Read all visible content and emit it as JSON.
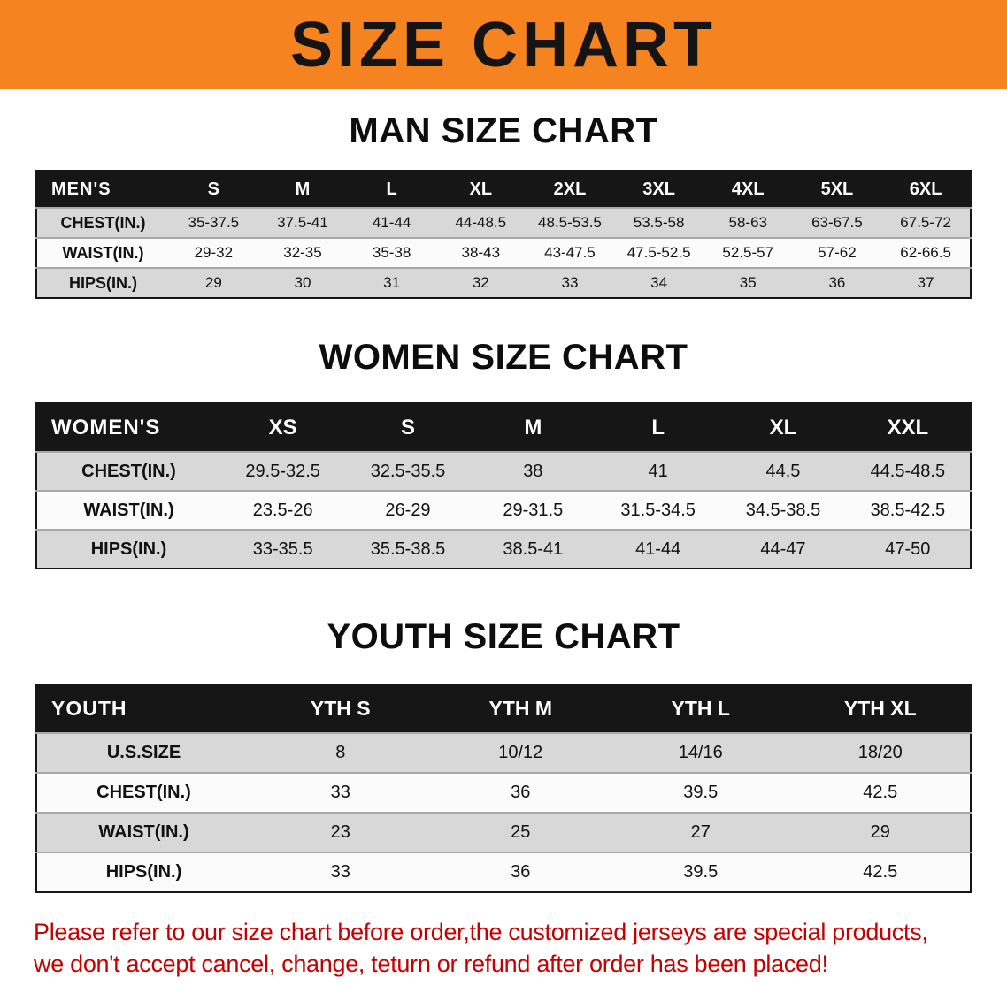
{
  "banner": {
    "title": "SIZE CHART",
    "bg_color": "#F5831F",
    "text_color": "#141414"
  },
  "sections": [
    {
      "heading": "MAN SIZE CHART",
      "header_label": "MEN'S",
      "columns": [
        "S",
        "M",
        "L",
        "XL",
        "2XL",
        "3XL",
        "4XL",
        "5XL",
        "6XL"
      ],
      "rows": [
        {
          "label": "CHEST(IN.)",
          "values": [
            "35-37.5",
            "37.5-41",
            "41-44",
            "44-48.5",
            "48.5-53.5",
            "53.5-58",
            "58-63",
            "63-67.5",
            "67.5-72"
          ]
        },
        {
          "label": "WAIST(IN.)",
          "values": [
            "29-32",
            "32-35",
            "35-38",
            "38-43",
            "43-47.5",
            "47.5-52.5",
            "52.5-57",
            "57-62",
            "62-66.5"
          ]
        },
        {
          "label": "HIPS(IN.)",
          "values": [
            "29",
            "30",
            "31",
            "32",
            "33",
            "34",
            "35",
            "36",
            "37"
          ]
        }
      ]
    },
    {
      "heading": "WOMEN SIZE CHART",
      "header_label": "WOMEN'S",
      "columns": [
        "XS",
        "S",
        "M",
        "L",
        "XL",
        "XXL"
      ],
      "rows": [
        {
          "label": "CHEST(IN.)",
          "values": [
            "29.5-32.5",
            "32.5-35.5",
            "38",
            "41",
            "44.5",
            "44.5-48.5"
          ]
        },
        {
          "label": "WAIST(IN.)",
          "values": [
            "23.5-26",
            "26-29",
            "29-31.5",
            "31.5-34.5",
            "34.5-38.5",
            "38.5-42.5"
          ]
        },
        {
          "label": "HIPS(IN.)",
          "values": [
            "33-35.5",
            "35.5-38.5",
            "38.5-41",
            "41-44",
            "44-47",
            "47-50"
          ]
        }
      ]
    },
    {
      "heading": "YOUTH SIZE CHART",
      "header_label": "YOUTH",
      "columns": [
        "YTH S",
        "YTH M",
        "YTH L",
        "YTH XL"
      ],
      "rows": [
        {
          "label": "U.S.SIZE",
          "values": [
            "8",
            "10/12",
            "14/16",
            "18/20"
          ]
        },
        {
          "label": "CHEST(IN.)",
          "values": [
            "33",
            "36",
            "39.5",
            "42.5"
          ]
        },
        {
          "label": "WAIST(IN.)",
          "values": [
            "23",
            "25",
            "27",
            "29"
          ]
        },
        {
          "label": "HIPS(IN.)",
          "values": [
            "33",
            "36",
            "39.5",
            "42.5"
          ]
        }
      ]
    }
  ],
  "disclaimer": {
    "line1": "Please refer to our size chart before order,the customized jerseys are special products,",
    "line2": "we don't accept cancel, change, teturn or refund after order has been placed!",
    "color": "#C40000"
  }
}
